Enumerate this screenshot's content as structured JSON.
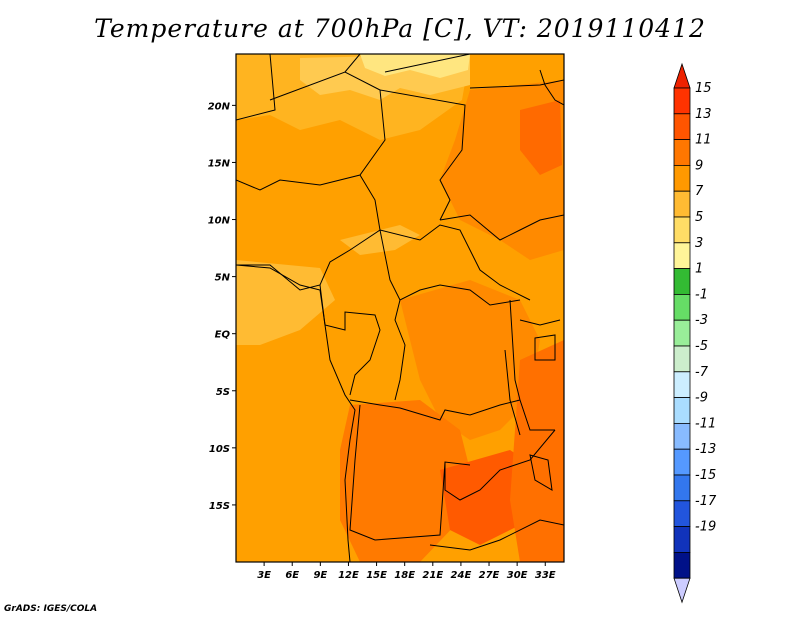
{
  "title": "Temperature at 700hPa [C], VT: 2019110412",
  "credit": "GrADS: IGES/COLA",
  "map": {
    "lat_labels": [
      "20N",
      "15N",
      "10N",
      "5N",
      "EQ",
      "5S",
      "10S",
      "15S"
    ],
    "lat_values": [
      20,
      15,
      10,
      5,
      0,
      -5,
      -10,
      -15
    ],
    "lon_labels": [
      "3E",
      "6E",
      "9E",
      "12E",
      "15E",
      "18E",
      "21E",
      "24E",
      "27E",
      "30E",
      "33E"
    ],
    "lon_values": [
      3,
      6,
      9,
      12,
      15,
      18,
      21,
      24,
      27,
      30,
      33
    ],
    "lat_range": [
      -20,
      24.5
    ],
    "lon_range": [
      0,
      35
    ]
  },
  "colorbar": {
    "labels": [
      "15",
      "13",
      "11",
      "9",
      "7",
      "5",
      "3",
      "1",
      "-1",
      "-3",
      "-5",
      "-7",
      "-9",
      "-11",
      "-13",
      "-15",
      "-17",
      "-19"
    ],
    "colors": [
      "#ff3300",
      "#ff5500",
      "#ff7700",
      "#ff9900",
      "#ffbb33",
      "#ffdd66",
      "#fff599",
      "#33bb33",
      "#66dd66",
      "#99ee99",
      "#cceecc",
      "#cceeff",
      "#aaddff",
      "#88bbff",
      "#5599ff",
      "#3377ee",
      "#2255dd",
      "#1133bb",
      "#001188"
    ],
    "top_arrow_color": "#ee2200",
    "bottom_arrow_color": "#ccccff"
  }
}
